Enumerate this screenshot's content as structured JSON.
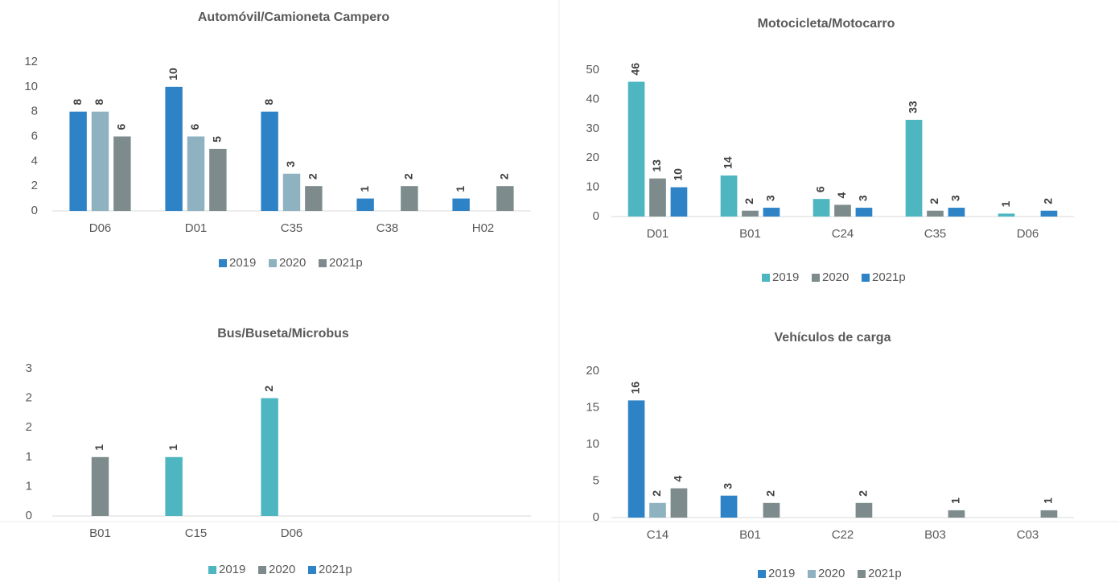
{
  "chart_data": [
    {
      "type": "bar",
      "title": "Automóvil/Camioneta Campero",
      "categories": [
        "D06",
        "D01",
        "C35",
        "C38",
        "H02"
      ],
      "series": [
        {
          "name": "2019",
          "color": "#2e82c6",
          "values": [
            8,
            10,
            8,
            1,
            1
          ]
        },
        {
          "name": "2020",
          "color": "#8fb2c0",
          "values": [
            8,
            6,
            3,
            null,
            null
          ]
        },
        {
          "name": "2021p",
          "color": "#7e8b8c",
          "values": [
            6,
            5,
            2,
            2,
            2
          ]
        }
      ],
      "ylim": [
        0,
        12
      ],
      "yticks": [
        0,
        2,
        4,
        6,
        8,
        10,
        12
      ]
    },
    {
      "type": "bar",
      "title": "Motocicleta/Motocarro",
      "categories": [
        "D01",
        "B01",
        "C24",
        "C35",
        "D06"
      ],
      "series": [
        {
          "name": "2019",
          "color": "#4db6c1",
          "values": [
            46,
            14,
            6,
            33,
            1
          ]
        },
        {
          "name": "2020",
          "color": "#7e8b8c",
          "values": [
            13,
            2,
            4,
            2,
            null
          ]
        },
        {
          "name": "2021p",
          "color": "#2e82c6",
          "values": [
            10,
            3,
            3,
            3,
            2
          ]
        }
      ],
      "ylim": [
        0,
        50
      ],
      "yticks": [
        0,
        10,
        20,
        30,
        40,
        50
      ]
    },
    {
      "type": "bar",
      "title": "Bus/Buseta/Microbus",
      "categories": [
        "B01",
        "C15",
        "D06",
        null,
        null
      ],
      "series": [
        {
          "name": "2019",
          "color": "#4db6c1",
          "values": [
            null,
            1,
            2,
            null,
            null
          ]
        },
        {
          "name": "2020",
          "color": "#7e8b8c",
          "values": [
            1,
            null,
            null,
            null,
            null
          ]
        },
        {
          "name": "2021p",
          "color": "#2e82c6",
          "values": [
            null,
            null,
            null,
            null,
            null
          ]
        }
      ],
      "ylim": [
        0,
        2.5
      ],
      "yticks": [
        0,
        {
          "value": 0.5,
          "label": "1"
        },
        1,
        {
          "value": 1.5,
          "label": "2"
        },
        2,
        {
          "value": 2.5,
          "label": "3"
        }
      ]
    },
    {
      "type": "bar",
      "title": "Vehículos de carga",
      "categories": [
        "C14",
        "B01",
        "C22",
        "B03",
        "C03"
      ],
      "series": [
        {
          "name": "2019",
          "color": "#2e82c6",
          "values": [
            16,
            3,
            null,
            null,
            null
          ]
        },
        {
          "name": "2020",
          "color": "#8fb2c0",
          "values": [
            2,
            null,
            null,
            null,
            null
          ]
        },
        {
          "name": "2021p",
          "color": "#7e8b8c",
          "values": [
            4,
            2,
            2,
            1,
            1
          ]
        }
      ],
      "ylim": [
        0,
        20
      ],
      "yticks": [
        0,
        5,
        10,
        15,
        20
      ]
    }
  ]
}
